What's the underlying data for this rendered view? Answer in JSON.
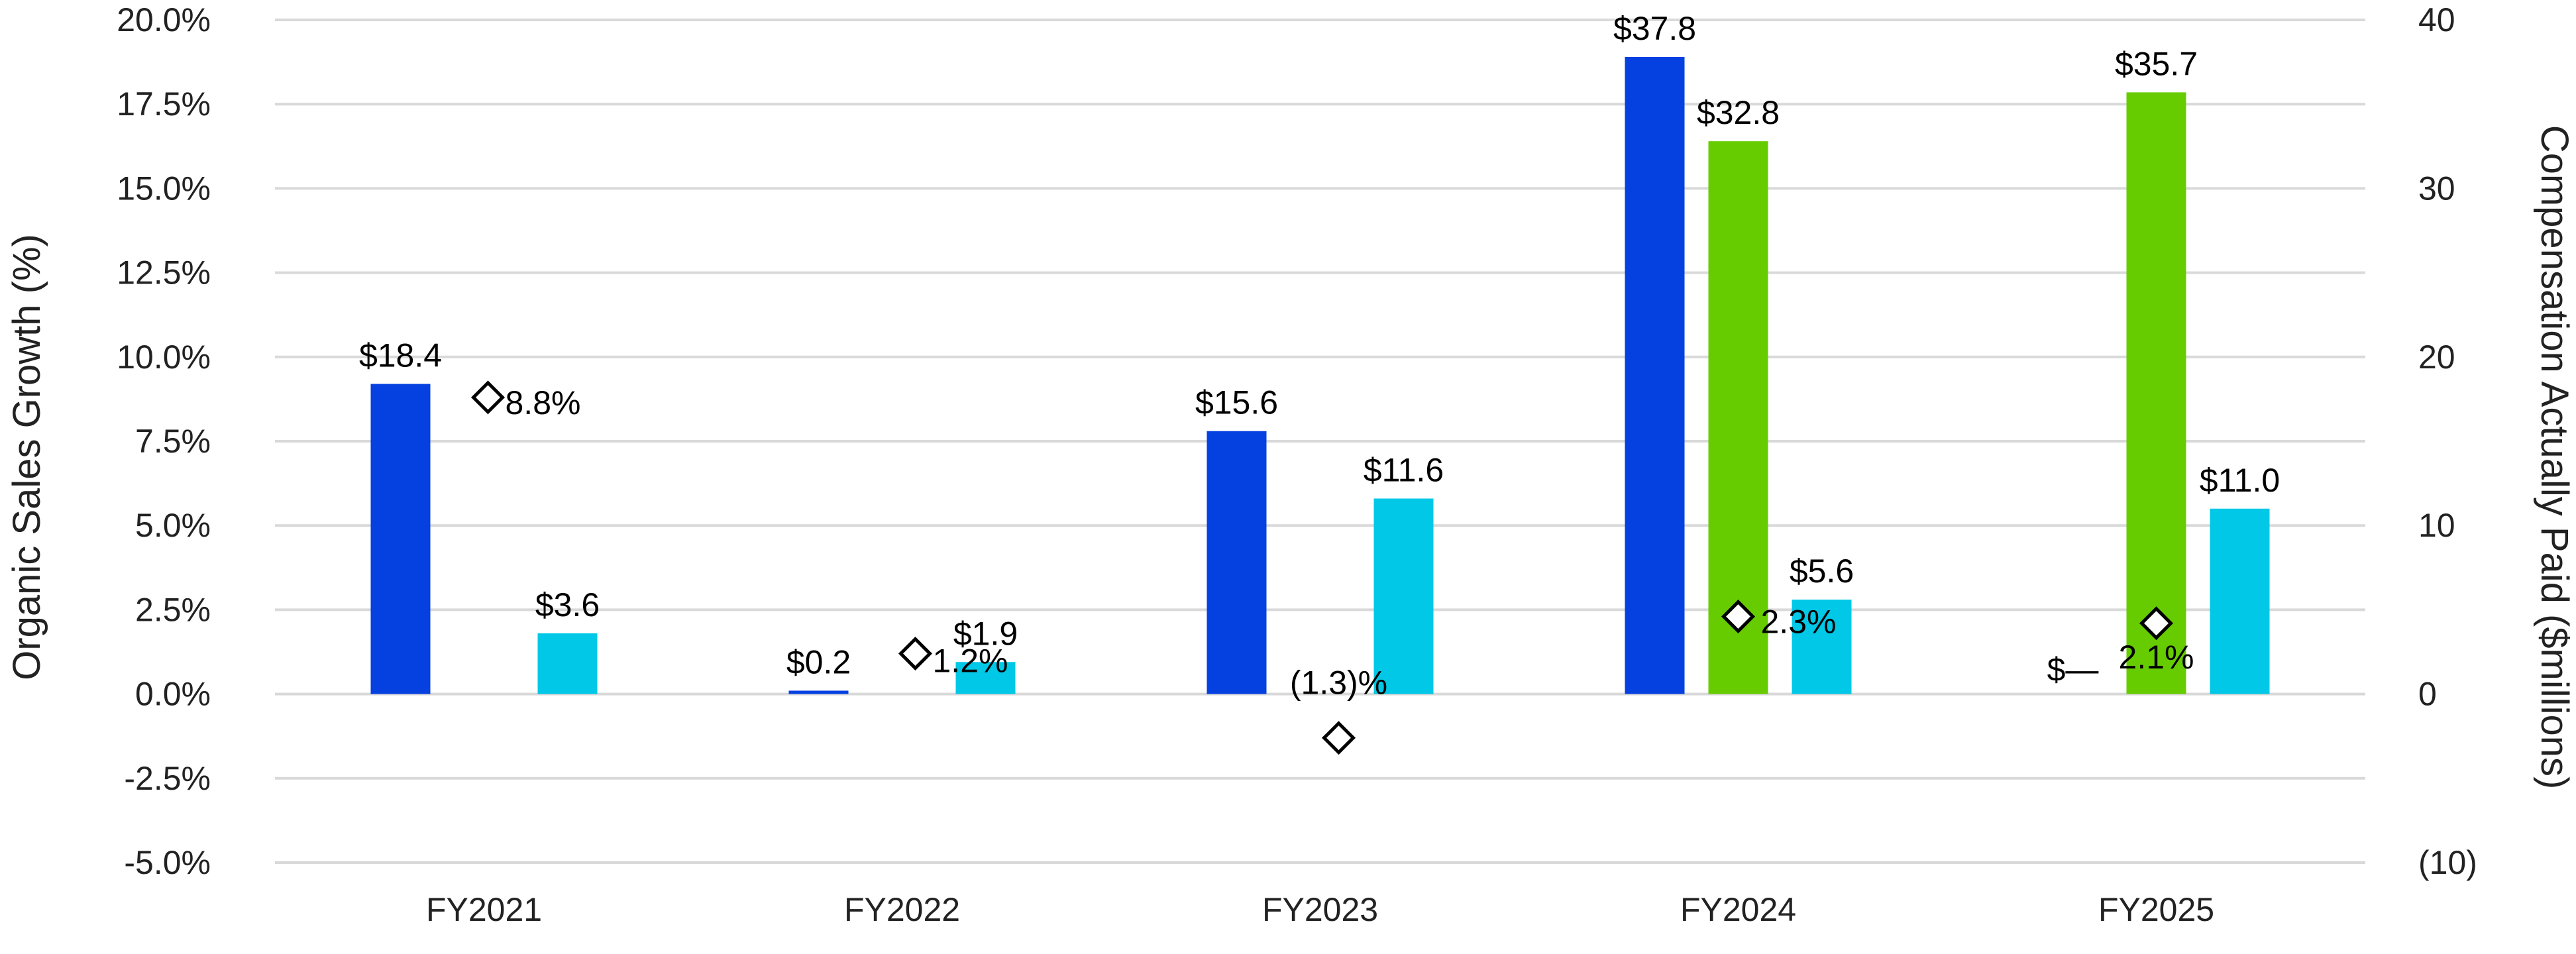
{
  "chart_data": {
    "type": "bar",
    "categories": [
      "FY2021",
      "FY2022",
      "FY2023",
      "FY2024",
      "FY2025"
    ],
    "y_left": {
      "label": "Organic Sales Growth (%)",
      "ticks": [
        "20.0%",
        "17.5%",
        "15.0%",
        "12.5%",
        "10.0%",
        "7.5%",
        "5.0%",
        "2.5%",
        "0.0%",
        "-2.5%",
        "-5.0%"
      ],
      "range": [
        -5.0,
        20.0
      ]
    },
    "y_right": {
      "label": "Compensation Actually Paid ($millions)",
      "ticks": [
        "40",
        "30",
        "20",
        "10",
        "0",
        "(10)"
      ],
      "range": [
        -10,
        40
      ]
    },
    "grid": true,
    "bar_series": [
      {
        "color": "#0540e0",
        "values": [
          18.4,
          0.2,
          15.6,
          37.8,
          null
        ],
        "labels": [
          "$18.4",
          "$0.2",
          "$15.6",
          "$37.8",
          ""
        ]
      },
      {
        "color": "#66cc00",
        "values": [
          null,
          null,
          null,
          32.8,
          35.7
        ],
        "labels": [
          "",
          "",
          "",
          "$32.8",
          "$35.7"
        ]
      },
      {
        "color": "#00c8e6",
        "values": [
          3.6,
          1.9,
          11.6,
          5.6,
          11.0
        ],
        "labels": [
          "$3.6",
          "$1.9",
          "$11.6",
          "$5.6",
          "$11.0"
        ]
      }
    ],
    "growth_series": {
      "values": [
        8.8,
        1.2,
        -1.3,
        2.3,
        2.1
      ],
      "labels": [
        "8.8%",
        "1.2%",
        "(1.3)%",
        "2.3%",
        "2.1%"
      ]
    },
    "extra_labels": [
      {
        "text": "$—",
        "category": "FY2025"
      }
    ]
  }
}
